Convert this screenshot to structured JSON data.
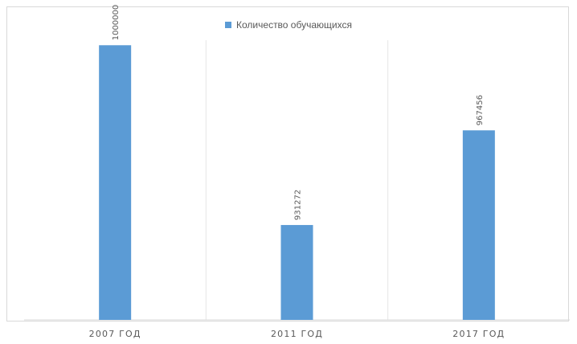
{
  "chart_data": {
    "type": "bar",
    "categories": [
      "2007 ГОД",
      "2011 ГОД",
      "2017 ГОД"
    ],
    "series": [
      {
        "name": "Количество обучающихся",
        "values": [
          1000000,
          931272,
          967456
        ],
        "color": "#5b9bd5"
      }
    ],
    "data_labels": [
      "1000000",
      "931272",
      "967456"
    ],
    "title": "",
    "xlabel": "",
    "ylabel": "",
    "ylim": [
      895000,
      1005000
    ],
    "legend_position": "top-center",
    "grid": "vertical category separators"
  }
}
